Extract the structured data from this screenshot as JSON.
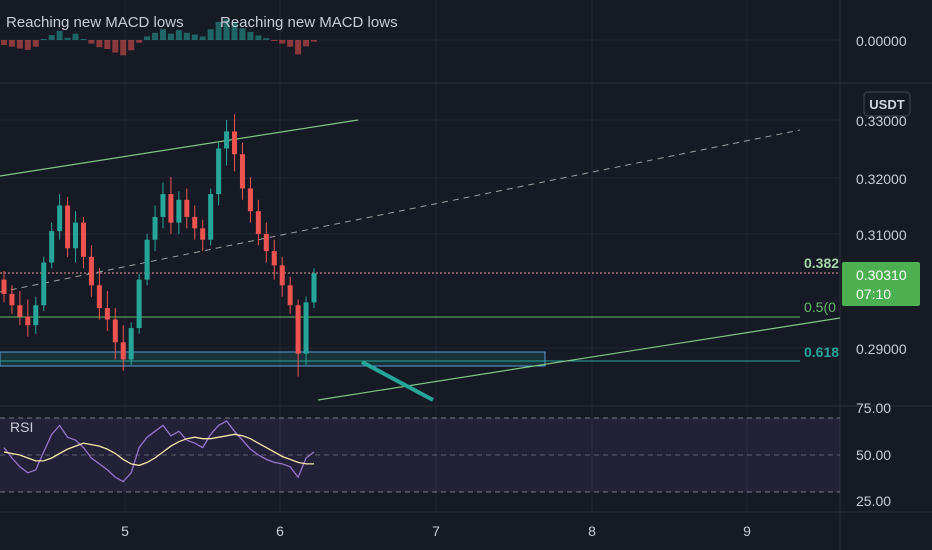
{
  "header": {
    "indicator_names": [
      "Reaching new MACD lows",
      "Reaching new MACD lows"
    ]
  },
  "price_axis": {
    "currency_badge": "USDT",
    "ticks": [
      "0.33000",
      "0.32000",
      "0.31000",
      "0.29000"
    ],
    "current_price": "0.30310",
    "countdown": "07:10"
  },
  "macd_axis": {
    "ticks": [
      "0.00000"
    ]
  },
  "rsi": {
    "label": "RSI",
    "ticks": [
      "75.00",
      "50.00",
      "25.00"
    ]
  },
  "time_axis": {
    "ticks": [
      "5",
      "6",
      "7",
      "8",
      "9"
    ]
  },
  "fib_labels": [
    "0.382",
    "0.5(0",
    "0.618"
  ],
  "colors": {
    "background": "#161a25",
    "up_candle": "#26a69a",
    "down_candle": "#ef5350",
    "price_badge": "#4caf50",
    "channel_line": "#81c784",
    "fib_0_618": "#26a69a",
    "rsi_line": "#9575cd",
    "rsi_ma": "#f5e6a8"
  },
  "chart_data": {
    "type": "candlestick",
    "price_axis_ticks": [
      0.33,
      0.32,
      0.31,
      0.29
    ],
    "current_price": 0.3031,
    "fib_levels": [
      {
        "label": "0.382",
        "price": 0.3031
      },
      {
        "label": "0.5(0",
        "price": 0.2955
      },
      {
        "label": "0.618",
        "price": 0.2875
      }
    ],
    "rsi_levels": [
      75,
      50,
      25
    ],
    "x_ticks": [
      5,
      6,
      7,
      8,
      9
    ],
    "candles": [
      {
        "o": 0.302,
        "h": 0.3035,
        "l": 0.298,
        "c": 0.2995
      },
      {
        "o": 0.2995,
        "h": 0.301,
        "l": 0.296,
        "c": 0.2975
      },
      {
        "o": 0.2975,
        "h": 0.3,
        "l": 0.294,
        "c": 0.2955
      },
      {
        "o": 0.2955,
        "h": 0.2985,
        "l": 0.292,
        "c": 0.294
      },
      {
        "o": 0.294,
        "h": 0.299,
        "l": 0.2925,
        "c": 0.2975
      },
      {
        "o": 0.2975,
        "h": 0.306,
        "l": 0.2965,
        "c": 0.305
      },
      {
        "o": 0.305,
        "h": 0.312,
        "l": 0.304,
        "c": 0.3105
      },
      {
        "o": 0.3105,
        "h": 0.317,
        "l": 0.309,
        "c": 0.315
      },
      {
        "o": 0.315,
        "h": 0.3165,
        "l": 0.306,
        "c": 0.3075
      },
      {
        "o": 0.3075,
        "h": 0.314,
        "l": 0.305,
        "c": 0.312
      },
      {
        "o": 0.312,
        "h": 0.313,
        "l": 0.304,
        "c": 0.306
      },
      {
        "o": 0.306,
        "h": 0.308,
        "l": 0.299,
        "c": 0.301
      },
      {
        "o": 0.301,
        "h": 0.304,
        "l": 0.295,
        "c": 0.297
      },
      {
        "o": 0.297,
        "h": 0.3,
        "l": 0.293,
        "c": 0.295
      },
      {
        "o": 0.295,
        "h": 0.297,
        "l": 0.288,
        "c": 0.291
      },
      {
        "o": 0.291,
        "h": 0.294,
        "l": 0.286,
        "c": 0.288
      },
      {
        "o": 0.288,
        "h": 0.2945,
        "l": 0.287,
        "c": 0.2935
      },
      {
        "o": 0.2935,
        "h": 0.303,
        "l": 0.2925,
        "c": 0.302
      },
      {
        "o": 0.302,
        "h": 0.31,
        "l": 0.301,
        "c": 0.309
      },
      {
        "o": 0.309,
        "h": 0.315,
        "l": 0.307,
        "c": 0.313
      },
      {
        "o": 0.313,
        "h": 0.319,
        "l": 0.311,
        "c": 0.317
      },
      {
        "o": 0.317,
        "h": 0.32,
        "l": 0.31,
        "c": 0.312
      },
      {
        "o": 0.312,
        "h": 0.3175,
        "l": 0.31,
        "c": 0.316
      },
      {
        "o": 0.316,
        "h": 0.318,
        "l": 0.311,
        "c": 0.313
      },
      {
        "o": 0.313,
        "h": 0.315,
        "l": 0.309,
        "c": 0.311
      },
      {
        "o": 0.311,
        "h": 0.3125,
        "l": 0.307,
        "c": 0.309
      },
      {
        "o": 0.309,
        "h": 0.318,
        "l": 0.308,
        "c": 0.317
      },
      {
        "o": 0.317,
        "h": 0.326,
        "l": 0.315,
        "c": 0.325
      },
      {
        "o": 0.325,
        "h": 0.33,
        "l": 0.322,
        "c": 0.328
      },
      {
        "o": 0.328,
        "h": 0.331,
        "l": 0.321,
        "c": 0.324
      },
      {
        "o": 0.324,
        "h": 0.326,
        "l": 0.316,
        "c": 0.318
      },
      {
        "o": 0.318,
        "h": 0.32,
        "l": 0.312,
        "c": 0.314
      },
      {
        "o": 0.314,
        "h": 0.316,
        "l": 0.308,
        "c": 0.31
      },
      {
        "o": 0.31,
        "h": 0.312,
        "l": 0.305,
        "c": 0.307
      },
      {
        "o": 0.307,
        "h": 0.309,
        "l": 0.302,
        "c": 0.3045
      },
      {
        "o": 0.3045,
        "h": 0.306,
        "l": 0.299,
        "c": 0.301
      },
      {
        "o": 0.301,
        "h": 0.3025,
        "l": 0.296,
        "c": 0.2975
      },
      {
        "o": 0.2975,
        "h": 0.2985,
        "l": 0.285,
        "c": 0.289
      },
      {
        "o": 0.289,
        "h": 0.299,
        "l": 0.287,
        "c": 0.298
      },
      {
        "o": 0.298,
        "h": 0.304,
        "l": 0.297,
        "c": 0.3031
      }
    ],
    "rsi_values": [
      55,
      48,
      42,
      38,
      40,
      52,
      64,
      70,
      62,
      60,
      55,
      48,
      44,
      40,
      35,
      32,
      38,
      55,
      62,
      66,
      70,
      63,
      66,
      60,
      58,
      55,
      64,
      70,
      73,
      66,
      60,
      54,
      50,
      47,
      45,
      44,
      42,
      35,
      48,
      52
    ],
    "rsi_ma": [
      52,
      51,
      50,
      48,
      46,
      46,
      48,
      51,
      54,
      56,
      58,
      57,
      56,
      54,
      51,
      47,
      44,
      43,
      45,
      48,
      52,
      56,
      59,
      61,
      62,
      61,
      61,
      62,
      63,
      64,
      63,
      61,
      58,
      55,
      52,
      49,
      47,
      45,
      44,
      44
    ]
  }
}
